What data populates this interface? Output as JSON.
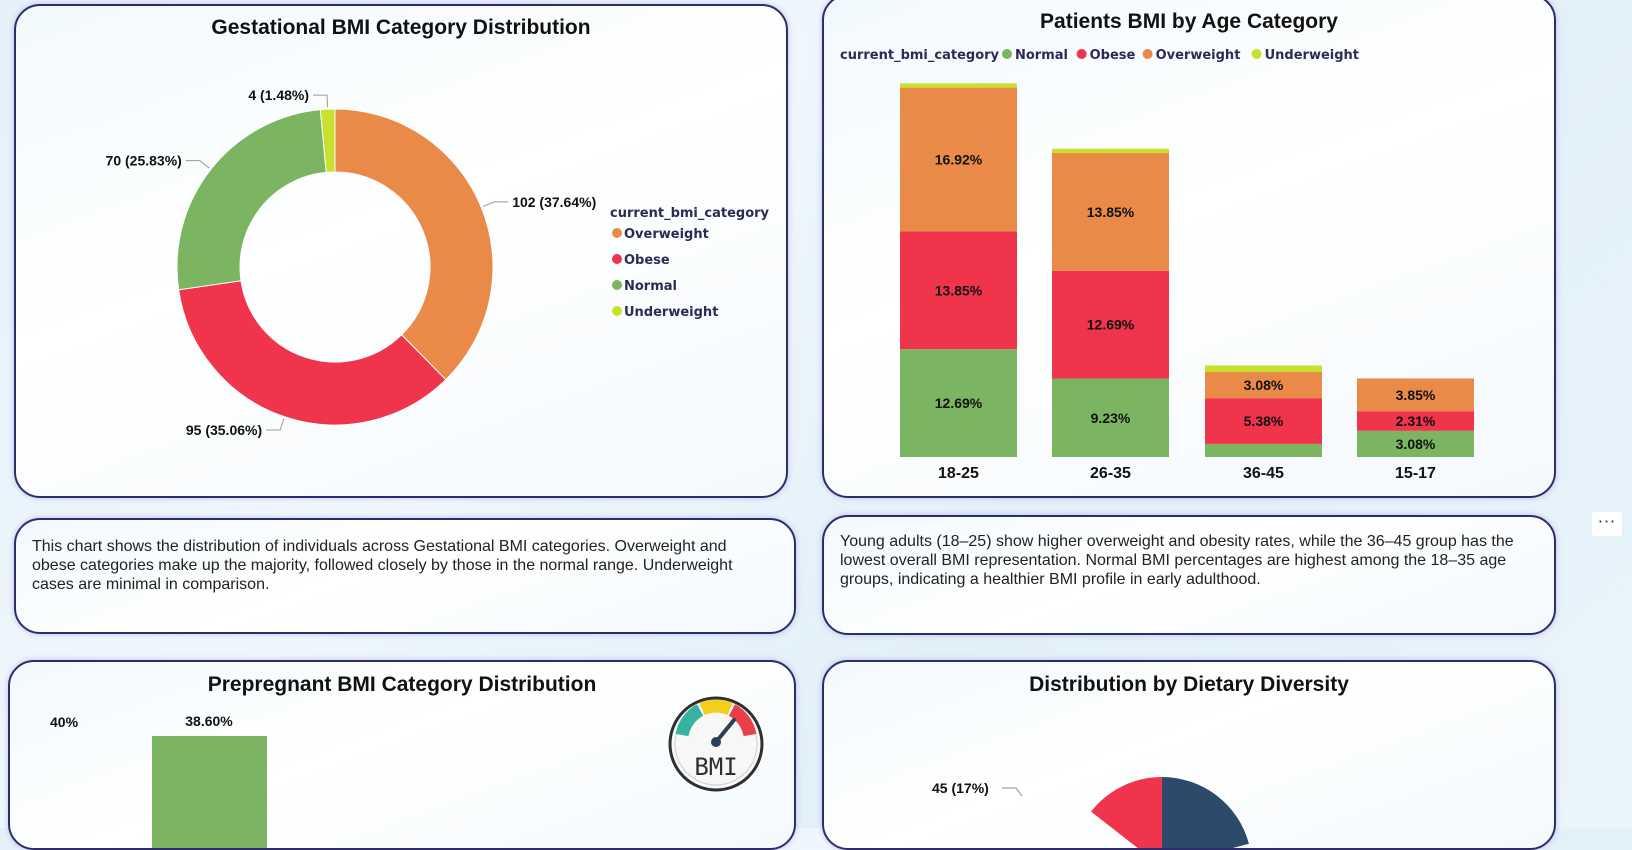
{
  "colors": {
    "overweight": "#ea8a48",
    "obese": "#ef344c",
    "normal": "#7cb561",
    "underweight": "#c8e12f",
    "dark_blue": "#2d4a6a"
  },
  "gestational": {
    "title": "Gestational BMI Category Distribution",
    "legend_title": "current_bmi_category",
    "legend": [
      "Overweight",
      "Obese",
      "Normal",
      "Underweight"
    ],
    "narrative": "This chart shows the distribution of individuals across Gestational BMI categories. Overweight and obese categories make up the majority, followed closely by those in the normal range. Underweight cases are minimal in comparison."
  },
  "age": {
    "title": "Patients BMI by Age Category",
    "legend_title": "current_bmi_category",
    "legend": [
      "Normal",
      "Obese",
      "Overweight",
      "Underweight"
    ],
    "narrative": "Young adults (18–25) show higher overweight and obesity rates, while the 36–45 group has the lowest overall BMI representation. Normal BMI percentages are highest among the 18–35 age groups, indicating a healthier BMI profile in early adulthood."
  },
  "prepregnant": {
    "title": "Prepregnant BMI Category Distribution",
    "ytick_top": "40%",
    "bar_label": "38.60%",
    "badge_text": "BMI"
  },
  "dietary": {
    "title": "Distribution by Dietary Diversity",
    "visible_label": "45 (17%)"
  },
  "more_options": "···",
  "chart_data": [
    {
      "type": "pie",
      "chart": "Gestational BMI Category Distribution",
      "donut": true,
      "legend_title": "current_bmi_category",
      "legend_position": "right",
      "categories": [
        "Overweight",
        "Obese",
        "Normal",
        "Underweight"
      ],
      "values": [
        102,
        95,
        70,
        4
      ],
      "labels": [
        "102 (37.64%)",
        "95 (35.06%)",
        "70 (25.83%)",
        "4 (1.48%)"
      ]
    },
    {
      "type": "bar",
      "stacked": true,
      "chart": "Patients BMI by Age Category",
      "legend_title": "current_bmi_category",
      "legend_position": "top-left",
      "categories": [
        "18-25",
        "26-35",
        "36-45",
        "15-17"
      ],
      "ylim": [
        0,
        45
      ],
      "series": [
        {
          "name": "Normal",
          "values": [
            12.69,
            9.23,
            1.54,
            3.08
          ],
          "labels": [
            "12.69%",
            "9.23%",
            "",
            "3.08%"
          ]
        },
        {
          "name": "Obese",
          "values": [
            13.85,
            12.69,
            5.38,
            2.31
          ],
          "labels": [
            "13.85%",
            "12.69%",
            "5.38%",
            "2.31%"
          ]
        },
        {
          "name": "Overweight",
          "values": [
            16.92,
            13.85,
            3.08,
            3.85
          ],
          "labels": [
            "16.92%",
            "13.85%",
            "3.08%",
            "3.85%"
          ]
        },
        {
          "name": "Underweight",
          "values": [
            0.5,
            0.5,
            0.77,
            0
          ],
          "labels": [
            "",
            "",
            "",
            ""
          ]
        }
      ]
    },
    {
      "type": "bar",
      "chart": "Prepregnant BMI Category Distribution",
      "visible_values": [
        38.6
      ],
      "visible_labels": [
        "38.60%"
      ],
      "ytick_labels": [
        "40%"
      ]
    },
    {
      "type": "pie",
      "chart": "Distribution by Dietary Diversity",
      "visible_labels": [
        "45 (17%)"
      ]
    }
  ]
}
